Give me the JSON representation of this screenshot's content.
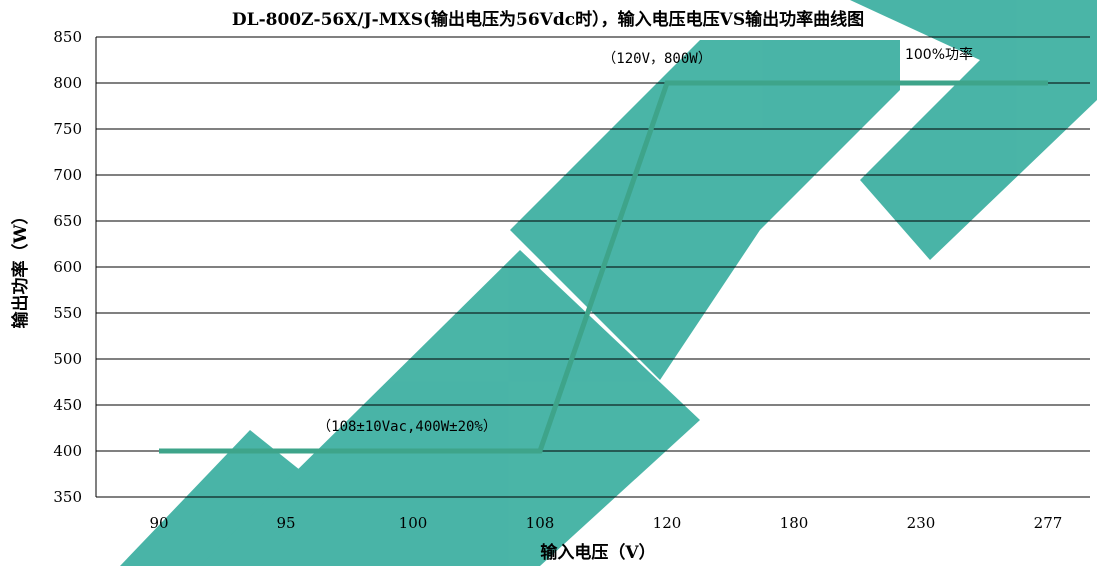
{
  "chart_data": {
    "type": "line",
    "title": "DL-800Z-56X/J-MXS(输出电压为56Vdc时），输入电压电压VS输出功率曲线图",
    "xlabel": "输入电压（V）",
    "ylabel": "输出功率（W）",
    "categories": [
      "90",
      "95",
      "100",
      "108",
      "120",
      "180",
      "230",
      "277"
    ],
    "series": [
      {
        "values": [
          400,
          400,
          400,
          400,
          800,
          800,
          800,
          800
        ]
      }
    ],
    "ylim": [
      350,
      850
    ],
    "yticks": [
      350,
      400,
      450,
      500,
      550,
      600,
      650,
      700,
      750,
      800,
      850
    ],
    "grid": true,
    "annotations": [
      {
        "text": "（108±10Vac,400W±20%）",
        "category": "100",
        "y": 400
      },
      {
        "text": "（120V，800W）",
        "category": "120",
        "y": 800
      },
      {
        "text": "100%功率",
        "category": "230",
        "y": 800
      }
    ],
    "colors": {
      "line": "#3ea48a",
      "grid": "#000000",
      "watermark": "#2aa898"
    }
  }
}
